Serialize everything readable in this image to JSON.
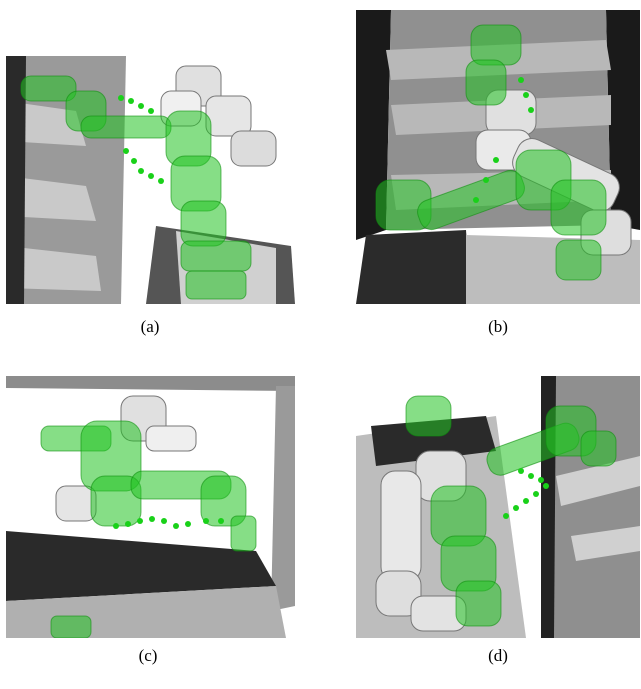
{
  "figure": {
    "panels": [
      {
        "id": "a",
        "caption": "(a)"
      },
      {
        "id": "b",
        "caption": "(b)"
      },
      {
        "id": "c",
        "caption": "(c)"
      },
      {
        "id": "d",
        "caption": "(d)"
      }
    ],
    "colors": {
      "robot_green": "#22c322",
      "robot_white": "#d9d9d9",
      "shelf_dark": "#1a1a1a",
      "shelf_grey": "#8c8c8c",
      "trajectory_dot": "#19d119"
    }
  }
}
